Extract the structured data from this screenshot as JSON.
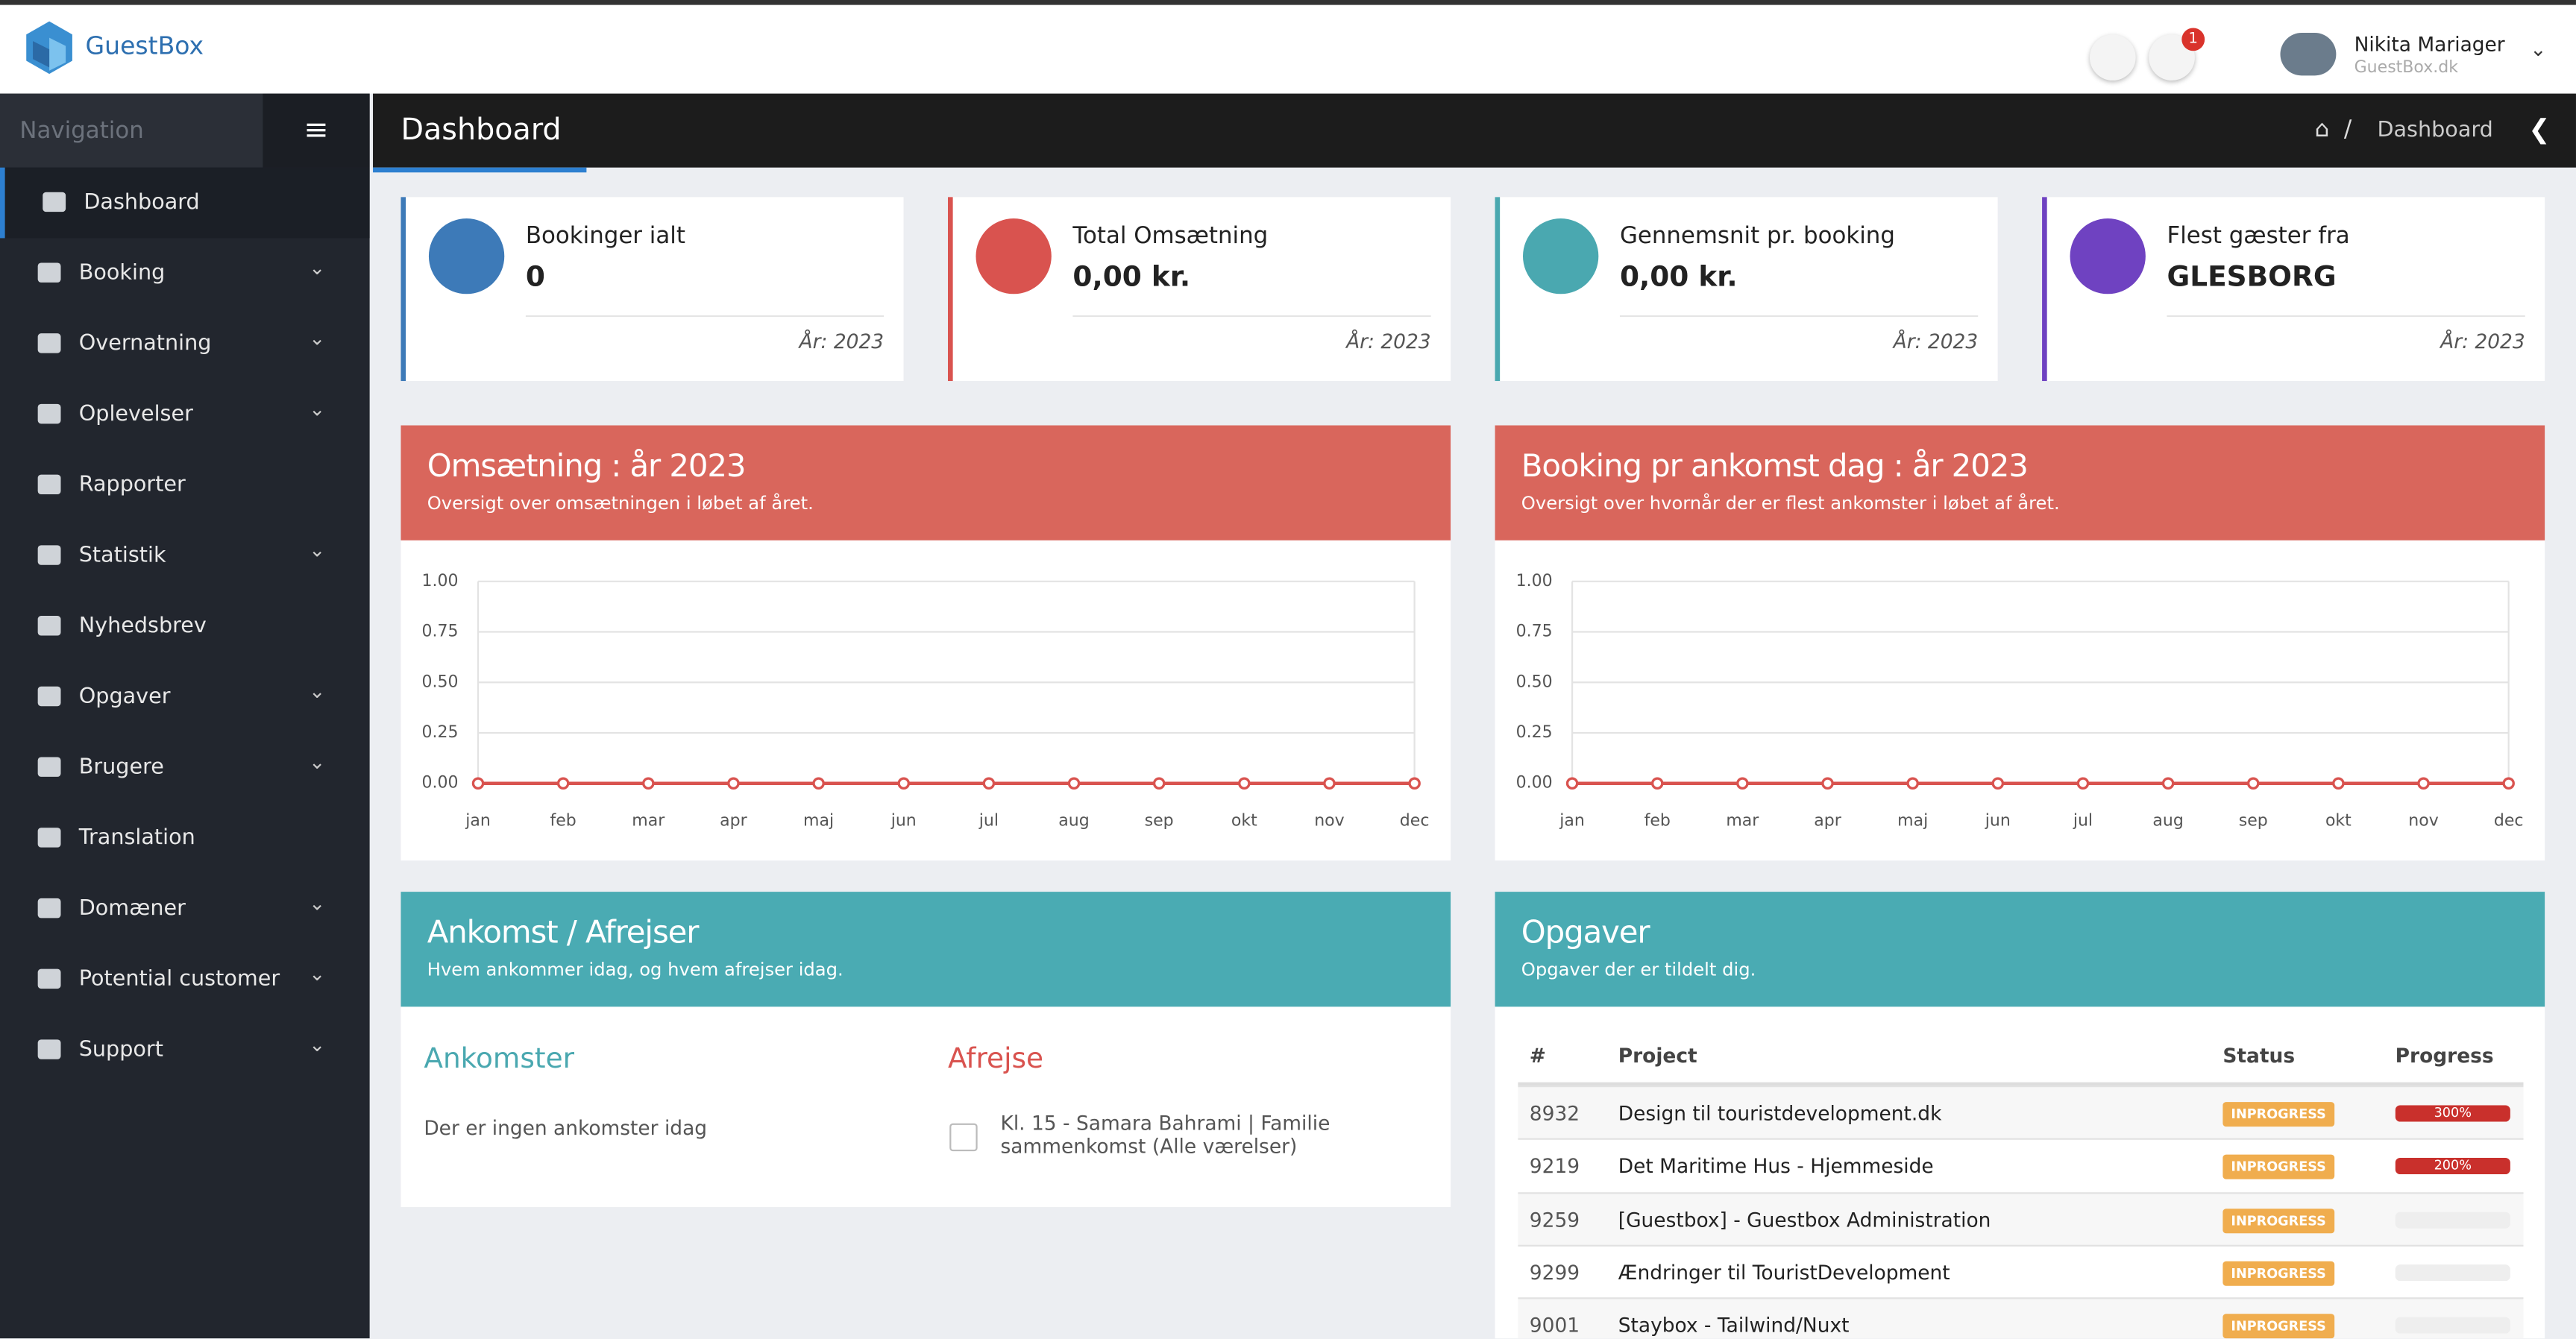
{
  "header": {
    "brand": "GuestBox",
    "notification_count": "1",
    "user_name": "Nikita Mariager",
    "user_sub": "GuestBox.dk"
  },
  "sidebar": {
    "title": "Navigation",
    "items": [
      {
        "label": "Dashboard",
        "submenu": false
      },
      {
        "label": "Booking",
        "submenu": true
      },
      {
        "label": "Overnatning",
        "submenu": true
      },
      {
        "label": "Oplevelser",
        "submenu": true
      },
      {
        "label": "Rapporter",
        "submenu": false
      },
      {
        "label": "Statistik",
        "submenu": true
      },
      {
        "label": "Nyhedsbrev",
        "submenu": false
      },
      {
        "label": "Opgaver",
        "submenu": true
      },
      {
        "label": "Brugere",
        "submenu": true
      },
      {
        "label": "Translation",
        "submenu": false
      },
      {
        "label": "Domæner",
        "submenu": true
      },
      {
        "label": "Potential customer",
        "submenu": true
      },
      {
        "label": "Support",
        "submenu": true
      }
    ]
  },
  "page": {
    "title": "Dashboard",
    "breadcrumb": "Dashboard"
  },
  "stats": [
    {
      "label": "Bookinger ialt",
      "value": "0",
      "year": "År: 2023",
      "color": "#3d7ab8"
    },
    {
      "label": "Total Omsætning",
      "value": "0,00 kr.",
      "year": "År: 2023",
      "color": "#d9534f"
    },
    {
      "label": "Gennemsnit pr. booking",
      "value": "0,00 kr.",
      "year": "År: 2023",
      "color": "#4aa8b0"
    },
    {
      "label": "Flest gæster fra",
      "value": "GLESBORG",
      "year": "År: 2023",
      "color": "#6f42c1"
    }
  ],
  "chart_data": [
    {
      "type": "line",
      "title": "Omsætning : år 2023",
      "subtitle": "Oversigt over omsætningen i løbet af året.",
      "categories": [
        "jan",
        "feb",
        "mar",
        "apr",
        "maj",
        "jun",
        "jul",
        "aug",
        "sep",
        "okt",
        "nov",
        "dec"
      ],
      "values": [
        0,
        0,
        0,
        0,
        0,
        0,
        0,
        0,
        0,
        0,
        0,
        0
      ],
      "color": "#d9534f",
      "ylim": [
        0,
        1
      ],
      "yticks": [
        {
          "value": 0,
          "label": "0.00"
        },
        {
          "value": 0.25,
          "label": "0.25"
        },
        {
          "value": 0.5,
          "label": "0.50"
        },
        {
          "value": 0.75,
          "label": "0.75"
        },
        {
          "value": 1,
          "label": "1.00"
        }
      ],
      "grid": true
    },
    {
      "type": "line",
      "title": "Booking pr ankomst dag : år 2023",
      "subtitle": "Oversigt over hvornår der er flest ankomster i løbet af året.",
      "categories": [
        "jan",
        "feb",
        "mar",
        "apr",
        "maj",
        "jun",
        "jul",
        "aug",
        "sep",
        "okt",
        "nov",
        "dec"
      ],
      "values": [
        0,
        0,
        0,
        0,
        0,
        0,
        0,
        0,
        0,
        0,
        0,
        0
      ],
      "color": "#d9534f",
      "ylim": [
        0,
        1
      ],
      "yticks": [
        {
          "value": 0,
          "label": "0.00"
        },
        {
          "value": 0.25,
          "label": "0.25"
        },
        {
          "value": 0.5,
          "label": "0.50"
        },
        {
          "value": 0.75,
          "label": "0.75"
        },
        {
          "value": 1,
          "label": "1.00"
        }
      ],
      "grid": true
    }
  ],
  "arrivals": {
    "title": "Ankomst / Afrejser",
    "subtitle": "Hvem ankommer idag, og hvem afrejser idag.",
    "arrivals_heading": "Ankomster",
    "arrivals_empty": "Der er ingen ankomster idag",
    "departures_heading": "Afrejse",
    "departures": [
      "Kl. 15 - Samara Bahrami | Familie sammenkomst (Alle værelser)"
    ]
  },
  "tasks": {
    "title": "Opgaver",
    "subtitle": "Opgaver der er tildelt dig.",
    "columns": [
      "#",
      "Project",
      "Status",
      "Progress"
    ],
    "rows": [
      {
        "id": "8932",
        "project": "Design til touristdevelopment.dk",
        "status": "INPROGRESS",
        "progress": 300,
        "progress_label": "300%"
      },
      {
        "id": "9219",
        "project": "Det Maritime Hus - Hjemmeside",
        "status": "INPROGRESS",
        "progress": 200,
        "progress_label": "200%"
      },
      {
        "id": "9259",
        "project": "[Guestbox] - Guestbox Administration",
        "status": "INPROGRESS",
        "progress": 0
      },
      {
        "id": "9299",
        "project": "Ændringer til TouristDevelopment",
        "status": "INPROGRESS",
        "progress": 0
      },
      {
        "id": "9001",
        "project": "Staybox - Tailwind/Nuxt",
        "status": "INPROGRESS",
        "progress": 0
      }
    ]
  }
}
